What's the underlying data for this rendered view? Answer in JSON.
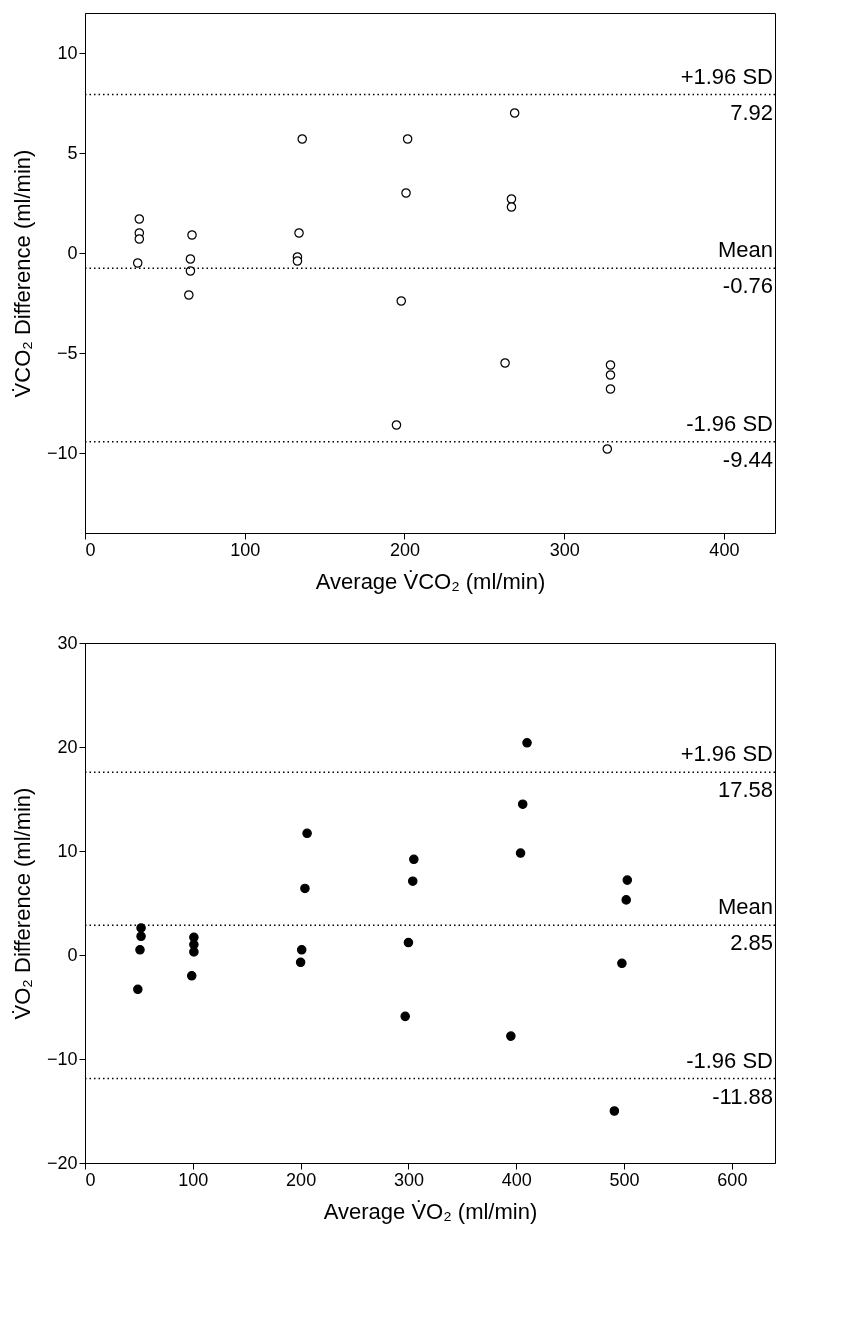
{
  "chart_data": [
    {
      "type": "scatter",
      "xlabel": "Average V̇CO₂ (ml/min)",
      "ylabel": "V̇CO₂ Difference (ml/min)",
      "xlim": [
        0,
        432
      ],
      "ylim": [
        -14,
        12
      ],
      "xticks": [
        0,
        100,
        200,
        300,
        400
      ],
      "yticks": [
        -10,
        -5,
        0,
        5,
        10
      ],
      "grid": false,
      "marker": "circle",
      "series": [
        {
          "color": "#ffffff",
          "x": [
            34,
            34,
            34,
            33,
            67,
            66,
            66,
            65,
            136,
            134,
            133,
            133,
            202,
            201,
            198,
            195,
            269,
            267,
            267,
            263,
            329,
            329,
            329,
            327
          ],
          "values": [
            1.7,
            1.0,
            0.7,
            -0.5,
            0.9,
            -0.3,
            -0.9,
            -2.1,
            5.7,
            1.0,
            -0.2,
            -0.4,
            5.7,
            3.0,
            -2.4,
            -8.6,
            7.0,
            2.7,
            2.3,
            -5.5,
            -5.6,
            -6.1,
            -6.8,
            -9.8
          ]
        }
      ],
      "ref_lines": [
        {
          "axis": "y",
          "value": 7.92,
          "label": "+1.96 SD",
          "line_style": "dotted"
        },
        {
          "axis": "y",
          "value": -0.76,
          "label": "Mean",
          "line_style": "dotted"
        },
        {
          "axis": "y",
          "value": -9.44,
          "label": "-1.96 SD",
          "line_style": "dotted"
        }
      ],
      "annotations": [
        {
          "text": "7.92",
          "y": 7.92
        },
        {
          "text": "-0.76",
          "y": -0.76
        },
        {
          "text": "-9.44",
          "y": -9.44
        }
      ]
    },
    {
      "type": "scatter",
      "xlabel": "Average V̇O₂ (ml/min)",
      "ylabel": "V̇O₂ Difference (ml/min)",
      "xlim": [
        0,
        640
      ],
      "ylim": [
        -20,
        30
      ],
      "xticks": [
        0,
        100,
        200,
        300,
        400,
        500,
        600
      ],
      "yticks": [
        -20,
        -10,
        0,
        10,
        20,
        30
      ],
      "grid": false,
      "marker": "circle",
      "series": [
        {
          "color": "#000000",
          "x": [
            52,
            52,
            51,
            49,
            101,
            101,
            101,
            99,
            206,
            204,
            201,
            200,
            305,
            304,
            300,
            297,
            410,
            406,
            404,
            395,
            503,
            502,
            498,
            491
          ],
          "values": [
            2.6,
            1.8,
            0.5,
            -3.3,
            1.7,
            1.0,
            0.3,
            -2.0,
            11.7,
            6.4,
            0.5,
            -0.7,
            9.2,
            7.1,
            1.2,
            -5.9,
            20.4,
            14.5,
            9.8,
            -7.8,
            7.2,
            5.3,
            -0.8,
            -15.0
          ]
        }
      ],
      "ref_lines": [
        {
          "axis": "y",
          "value": 17.58,
          "label": "+1.96 SD",
          "line_style": "dotted"
        },
        {
          "axis": "y",
          "value": 2.85,
          "label": "Mean",
          "line_style": "dotted"
        },
        {
          "axis": "y",
          "value": -11.88,
          "label": "-1.96 SD",
          "line_style": "dotted"
        }
      ],
      "annotations": [
        {
          "text": "17.58",
          "y": 17.58
        },
        {
          "text": "2.85",
          "y": 2.85
        },
        {
          "text": "-11.88",
          "y": -11.88
        }
      ]
    }
  ]
}
